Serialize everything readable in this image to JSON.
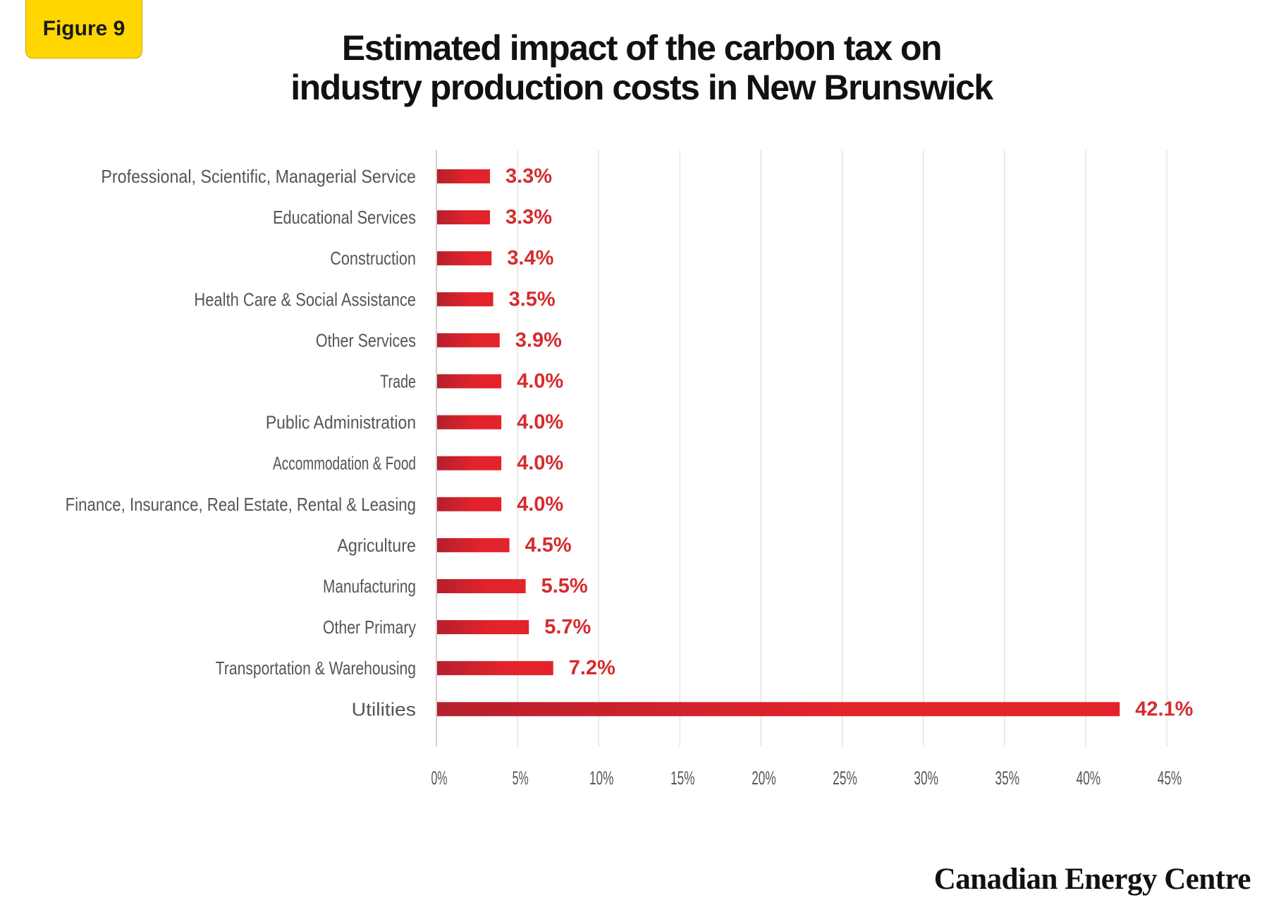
{
  "badge": {
    "label": "Figure 9"
  },
  "title": {
    "line1": "Estimated impact of the carbon tax on",
    "line2": "industry production costs in New Brunswick"
  },
  "brand": {
    "name": "Canadian Energy Centre"
  },
  "colors": {
    "bar": "#e3232b",
    "bar_dark": "#b5202c",
    "value_label": "#d52b2e",
    "category_label": "#555555",
    "tick_label": "#555555",
    "grid": "#dddddd",
    "badge": "#ffd600"
  },
  "chart_data": {
    "type": "bar",
    "orientation": "horizontal",
    "title": "Estimated impact of the carbon tax on industry production costs in New Brunswick",
    "categories": [
      "Professional, Scientific, Managerial Service",
      "Educational Services",
      "Construction",
      "Health Care & Social Assistance",
      "Other Services",
      "Trade",
      "Public Administration",
      "Accommodation & Food",
      "Finance, Insurance, Real Estate, Rental & Leasing",
      "Agriculture",
      "Manufacturing",
      "Other Primary",
      "Transportation & Warehousing",
      "Utilities"
    ],
    "values": [
      3.3,
      3.3,
      3.4,
      3.5,
      3.9,
      4.0,
      4.0,
      4.0,
      4.0,
      4.5,
      5.5,
      5.7,
      7.2,
      42.1
    ],
    "value_labels": [
      "3.3%",
      "3.3%",
      "3.4%",
      "3.5%",
      "3.9%",
      "4.0%",
      "4.0%",
      "4.0%",
      "4.0%",
      "4.5%",
      "5.5%",
      "5.7%",
      "7.2%",
      "42.1%"
    ],
    "xlim": [
      0,
      45
    ],
    "xticks": [
      0,
      5,
      10,
      15,
      20,
      25,
      30,
      35,
      40,
      45
    ],
    "xtick_labels": [
      "0%",
      "5%",
      "10%",
      "15%",
      "20%",
      "25%",
      "30%",
      "35%",
      "40%",
      "45%"
    ],
    "grid": "vertical",
    "legend": "none"
  }
}
